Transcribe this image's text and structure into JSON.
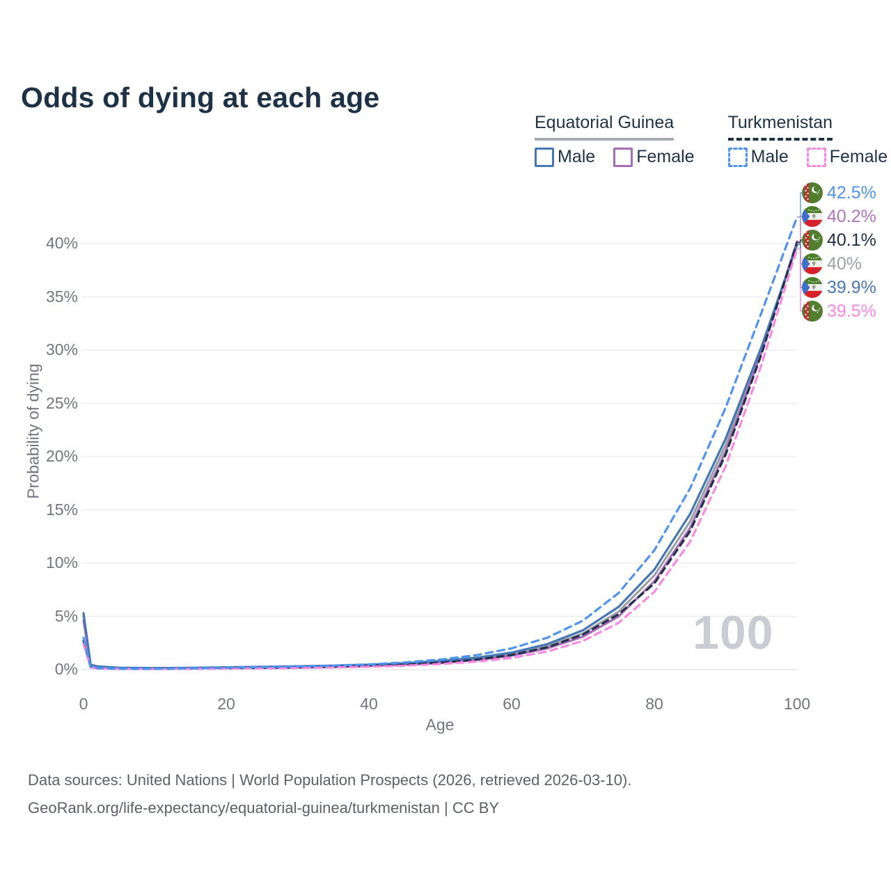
{
  "title": "Odds of dying at each age",
  "legend": {
    "groups": [
      {
        "label": "Equatorial Guinea",
        "line_style": "solid",
        "line_color": "#a8abb0",
        "items": [
          {
            "label": "Male",
            "color": "#4677b5"
          },
          {
            "label": "Female",
            "color": "#a96bb5"
          }
        ]
      },
      {
        "label": "Turkmenistan",
        "line_style": "dashed",
        "line_color": "#1d3147",
        "items": [
          {
            "label": "Male",
            "color": "#4d93ef"
          },
          {
            "label": "Female",
            "color": "#fb87e2"
          }
        ]
      }
    ]
  },
  "watermark": "100",
  "footer": {
    "line1": "Data sources: United Nations | World Population Prospects (2026, retrieved 2026-03-10).",
    "line2": "GeoRank.org/life-expectancy/equatorial-guinea/turkmenistan | CC BY"
  },
  "chart_data": {
    "type": "line",
    "title": "Odds of dying at each age",
    "xlabel": "Age",
    "ylabel": "Probability of dying",
    "xlim": [
      0,
      100
    ],
    "ylim_percent": [
      0,
      44
    ],
    "grid": "horizontal",
    "x_ticks": [
      0,
      20,
      40,
      60,
      80,
      100
    ],
    "y_ticks": [
      0,
      5,
      10,
      15,
      20,
      25,
      30,
      35,
      40
    ],
    "y_tick_labels": [
      "0%",
      "5%",
      "10%",
      "15%",
      "20%",
      "25%",
      "30%",
      "35%",
      "40%"
    ],
    "x": [
      0,
      1,
      2,
      5,
      10,
      15,
      20,
      25,
      30,
      35,
      40,
      45,
      50,
      55,
      60,
      65,
      70,
      75,
      80,
      85,
      90,
      95,
      100
    ],
    "series": [
      {
        "key": "eg_total",
        "name": "Equatorial Guinea Total",
        "color": "#9b9fa6",
        "dash": "",
        "values": [
          5.0,
          0.42,
          0.28,
          0.165,
          0.135,
          0.15,
          0.19,
          0.23,
          0.275,
          0.33,
          0.41,
          0.53,
          0.72,
          1.01,
          1.46,
          2.2,
          3.4,
          5.45,
          8.85,
          13.9,
          21.1,
          30.0,
          40.0
        ]
      },
      {
        "key": "eg_female",
        "name": "Equatorial Guinea Female",
        "color": "#a96bb5",
        "dash": "",
        "values": [
          4.6,
          0.4,
          0.26,
          0.15,
          0.12,
          0.13,
          0.16,
          0.19,
          0.23,
          0.28,
          0.35,
          0.46,
          0.63,
          0.9,
          1.32,
          2.0,
          3.1,
          5.0,
          8.3,
          13.3,
          20.5,
          29.8,
          40.2
        ]
      },
      {
        "key": "eg_male",
        "name": "Equatorial Guinea Male",
        "color": "#4677b5",
        "dash": "",
        "values": [
          5.3,
          0.45,
          0.3,
          0.18,
          0.15,
          0.17,
          0.22,
          0.27,
          0.32,
          0.38,
          0.47,
          0.6,
          0.82,
          1.12,
          1.6,
          2.4,
          3.7,
          5.9,
          9.4,
          14.6,
          21.7,
          30.3,
          39.9
        ]
      },
      {
        "key": "tm_total",
        "name": "Turkmenistan Total",
        "color": "#22304d",
        "dash": "9 7",
        "values": [
          2.7,
          0.22,
          0.13,
          0.08,
          0.07,
          0.09,
          0.12,
          0.16,
          0.2,
          0.26,
          0.34,
          0.46,
          0.65,
          0.93,
          1.38,
          2.1,
          3.3,
          5.2,
          8.1,
          13.0,
          20.2,
          29.6,
          40.1
        ]
      },
      {
        "key": "tm_female",
        "name": "Turkmenistan Female",
        "color": "#fb87e2",
        "dash": "10 7",
        "values": [
          2.4,
          0.2,
          0.12,
          0.07,
          0.06,
          0.08,
          0.1,
          0.13,
          0.16,
          0.21,
          0.27,
          0.37,
          0.52,
          0.75,
          1.1,
          1.7,
          2.7,
          4.4,
          7.3,
          12.0,
          19.1,
          28.6,
          39.5
        ]
      },
      {
        "key": "tm_male",
        "name": "Turkmenistan Male",
        "color": "#4d93ef",
        "dash": "10 7",
        "values": [
          3.0,
          0.25,
          0.15,
          0.09,
          0.08,
          0.12,
          0.18,
          0.24,
          0.3,
          0.38,
          0.5,
          0.68,
          0.95,
          1.35,
          2.0,
          3.0,
          4.6,
          7.2,
          11.2,
          17.0,
          24.6,
          33.5,
          42.5
        ]
      }
    ],
    "end_labels": [
      {
        "text": "42.5%",
        "series": "tm_male",
        "flag": "tm",
        "color": "#4d93ef"
      },
      {
        "text": "40.2%",
        "series": "eg_female",
        "flag": "eq",
        "color": "#b273c2"
      },
      {
        "text": "40.1%",
        "series": "tm_total",
        "flag": "tm",
        "color": "#1d2e49"
      },
      {
        "text": "40%",
        "series": "eg_total",
        "flag": "eq",
        "color": "#9aa0a6"
      },
      {
        "text": "39.9%",
        "series": "eg_male",
        "flag": "eq",
        "color": "#4677b5"
      },
      {
        "text": "39.5%",
        "series": "tm_female",
        "flag": "tm",
        "color": "#f985e5"
      }
    ],
    "legend_position": "top-right"
  }
}
